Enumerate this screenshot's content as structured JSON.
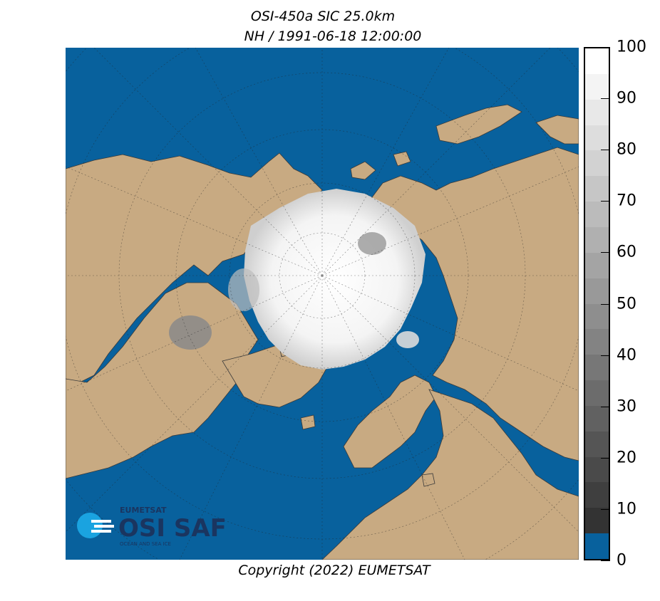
{
  "title_line1": "OSI-450a SIC 25.0km",
  "title_line2": "NH / 1991-06-18 12:00:00",
  "copyright": "Copyright (2022)  EUMETSAT",
  "logo": {
    "org": "EUMETSAT",
    "name": "OSI SAF",
    "tagline": "OCEAN AND SEA ICE"
  },
  "colorbar": {
    "ticks": [
      "0",
      "10",
      "20",
      "30",
      "40",
      "50",
      "60",
      "70",
      "80",
      "90",
      "100"
    ],
    "min": 0,
    "max": 100,
    "water_color": "#08619d",
    "land_color": "#c8aa82",
    "ice_color": "#ffffff"
  }
}
